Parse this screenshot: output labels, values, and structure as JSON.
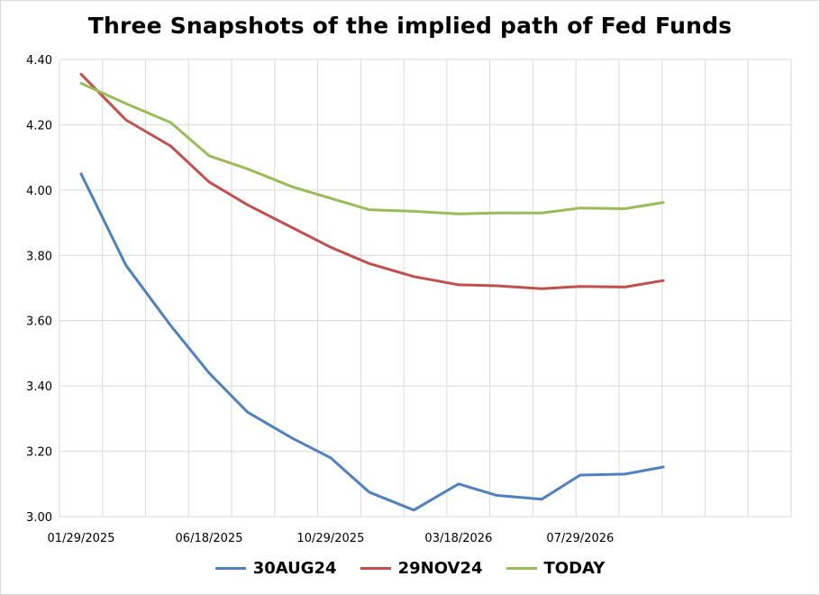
{
  "chart_data": {
    "type": "line",
    "title": "Three Snapshots of the implied path of Fed Funds",
    "xlabel": "",
    "ylabel": "",
    "ylim": [
      3.0,
      4.4
    ],
    "yticks": [
      "3.00",
      "3.20",
      "3.40",
      "3.60",
      "3.80",
      "4.00",
      "4.20",
      "4.40"
    ],
    "xtick_labels": [
      "01/29/2025",
      "06/18/2025",
      "10/29/2025",
      "03/18/2026",
      "07/29/2026"
    ],
    "x": [
      "01/29/2025",
      "03/19/2025",
      "05/07/2025",
      "06/18/2025",
      "07/30/2025",
      "09/17/2025",
      "10/29/2025",
      "12/10/2025",
      "01/28/2026",
      "03/18/2026",
      "04/29/2026",
      "06/17/2026",
      "07/29/2026",
      "09/16/2026",
      "10/28/2026"
    ],
    "grid": true,
    "legend_position": "bottom",
    "series": [
      {
        "name": "30AUG24",
        "color": "#4f81bd",
        "values": [
          4.05,
          3.77,
          3.585,
          3.44,
          3.32,
          3.24,
          3.18,
          3.075,
          3.02,
          3.1,
          3.065,
          3.053,
          3.127,
          3.13,
          3.152
        ]
      },
      {
        "name": "29NOV24",
        "color": "#c0504d",
        "values": [
          4.355,
          4.215,
          4.135,
          4.025,
          3.955,
          3.885,
          3.825,
          3.775,
          3.735,
          3.71,
          3.707,
          3.698,
          3.705,
          3.703,
          3.723
        ]
      },
      {
        "name": "TODAY",
        "color": "#9bbb59",
        "values": [
          4.327,
          4.265,
          4.207,
          4.105,
          4.065,
          4.01,
          3.975,
          3.94,
          3.935,
          3.927,
          3.93,
          3.93,
          3.945,
          3.943,
          3.962
        ]
      }
    ]
  }
}
